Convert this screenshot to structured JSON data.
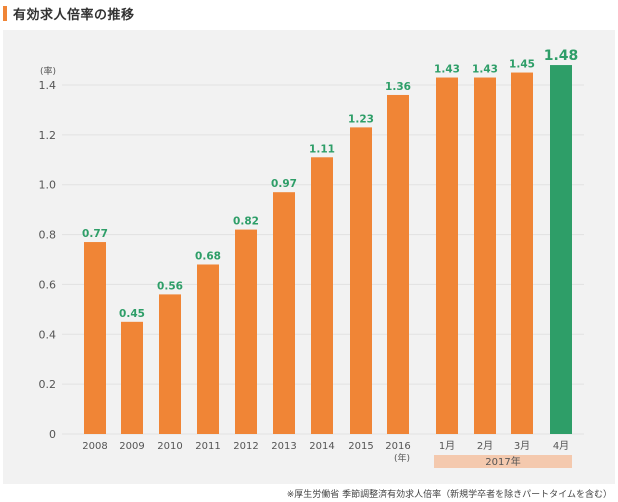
{
  "title": "有効求人倍率の推移",
  "footnote": "※厚生労働省 季節調整済有効求人倍率（新規学卒者を除きパートタイムを含む）",
  "chart_data": {
    "type": "bar",
    "title": "有効求人倍率の推移",
    "ylabel": "(率)",
    "xlabel": "",
    "ylim": [
      0,
      1.4
    ],
    "yticks": [
      "0",
      "0.2",
      "0.4",
      "0.6",
      "0.8",
      "1.0",
      "1.2",
      "1.4"
    ],
    "categories": [
      "2008",
      "2009",
      "2010",
      "2011",
      "2012",
      "2013",
      "2014",
      "2015",
      "2016",
      "1月",
      "2月",
      "3月",
      "4月"
    ],
    "values": [
      0.77,
      0.45,
      0.56,
      0.68,
      0.82,
      0.97,
      1.11,
      1.23,
      1.36,
      1.43,
      1.43,
      1.45,
      1.48
    ],
    "value_labels": [
      "0.77",
      "0.45",
      "0.56",
      "0.68",
      "0.82",
      "0.97",
      "1.11",
      "1.23",
      "1.36",
      "1.43",
      "1.43",
      "1.45",
      "1.48"
    ],
    "year_unit_label": "(年)",
    "group_label": "2017年",
    "grid": true,
    "colors": {
      "bar": "#f08536",
      "highlight_bar": "#2e9e68",
      "value_label": "#2e9e68",
      "group_band": "#f4c9ae",
      "grid": "#e1e1e1",
      "axis_text": "#555555"
    }
  }
}
